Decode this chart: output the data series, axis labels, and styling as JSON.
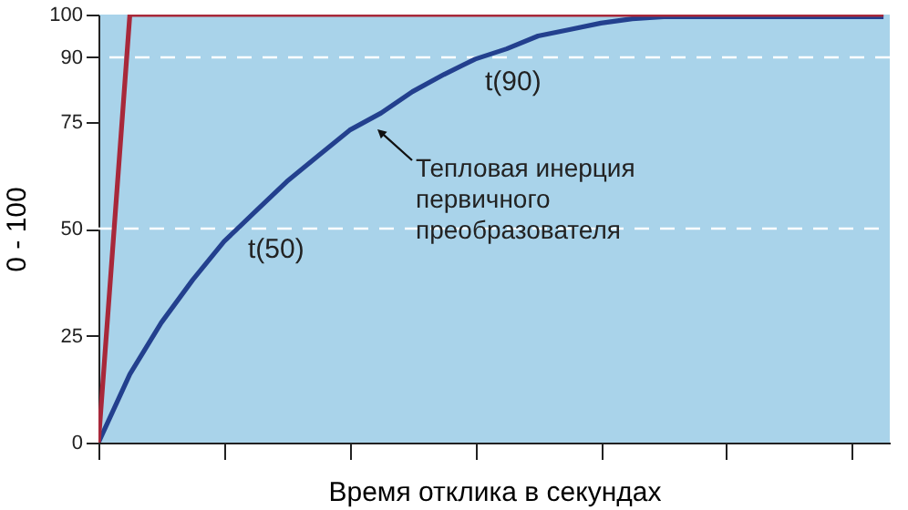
{
  "chart_data": {
    "type": "line",
    "xlabel": "Время отклика в секундах",
    "ylabel": "0 - 100",
    "categories": [
      null,
      null,
      null,
      null,
      null,
      null,
      null,
      null,
      null,
      null,
      null,
      null,
      null,
      null,
      null,
      null,
      null,
      null,
      null,
      null,
      null,
      null,
      null,
      null,
      null,
      null
    ],
    "ylim": [
      0,
      100
    ],
    "yticks": [
      0,
      25,
      50,
      75,
      90,
      100
    ],
    "tick_labels": "y",
    "grid": false,
    "line_style": "solid",
    "series": [
      {
        "color": "#23408e",
        "values": [
          0,
          16,
          28,
          38,
          47,
          54,
          61,
          67,
          73,
          77,
          82,
          86,
          89.6,
          92,
          95,
          96.5,
          98,
          99,
          99.5,
          99.5,
          99.5,
          99.5,
          99.5,
          99.5,
          99.5,
          99.5
        ]
      },
      {
        "color": "#a8283a",
        "values": [
          0,
          100,
          100,
          100,
          100,
          100,
          100,
          100,
          100,
          100,
          100,
          100,
          100,
          100,
          100,
          100,
          100,
          100,
          100,
          100,
          100,
          100,
          100,
          100,
          100,
          100
        ]
      }
    ],
    "ref_lines": [
      {
        "axis": "y",
        "value": 50,
        "label": "t(50)",
        "color": "#ffffff",
        "line_style": "dashed"
      },
      {
        "axis": "y",
        "value": 90,
        "label": "t(90)",
        "color": "#ffffff",
        "line_style": "dashed"
      }
    ],
    "annotations": [
      "Тепловая инерция\nпервичного\nпреобразователя"
    ]
  }
}
